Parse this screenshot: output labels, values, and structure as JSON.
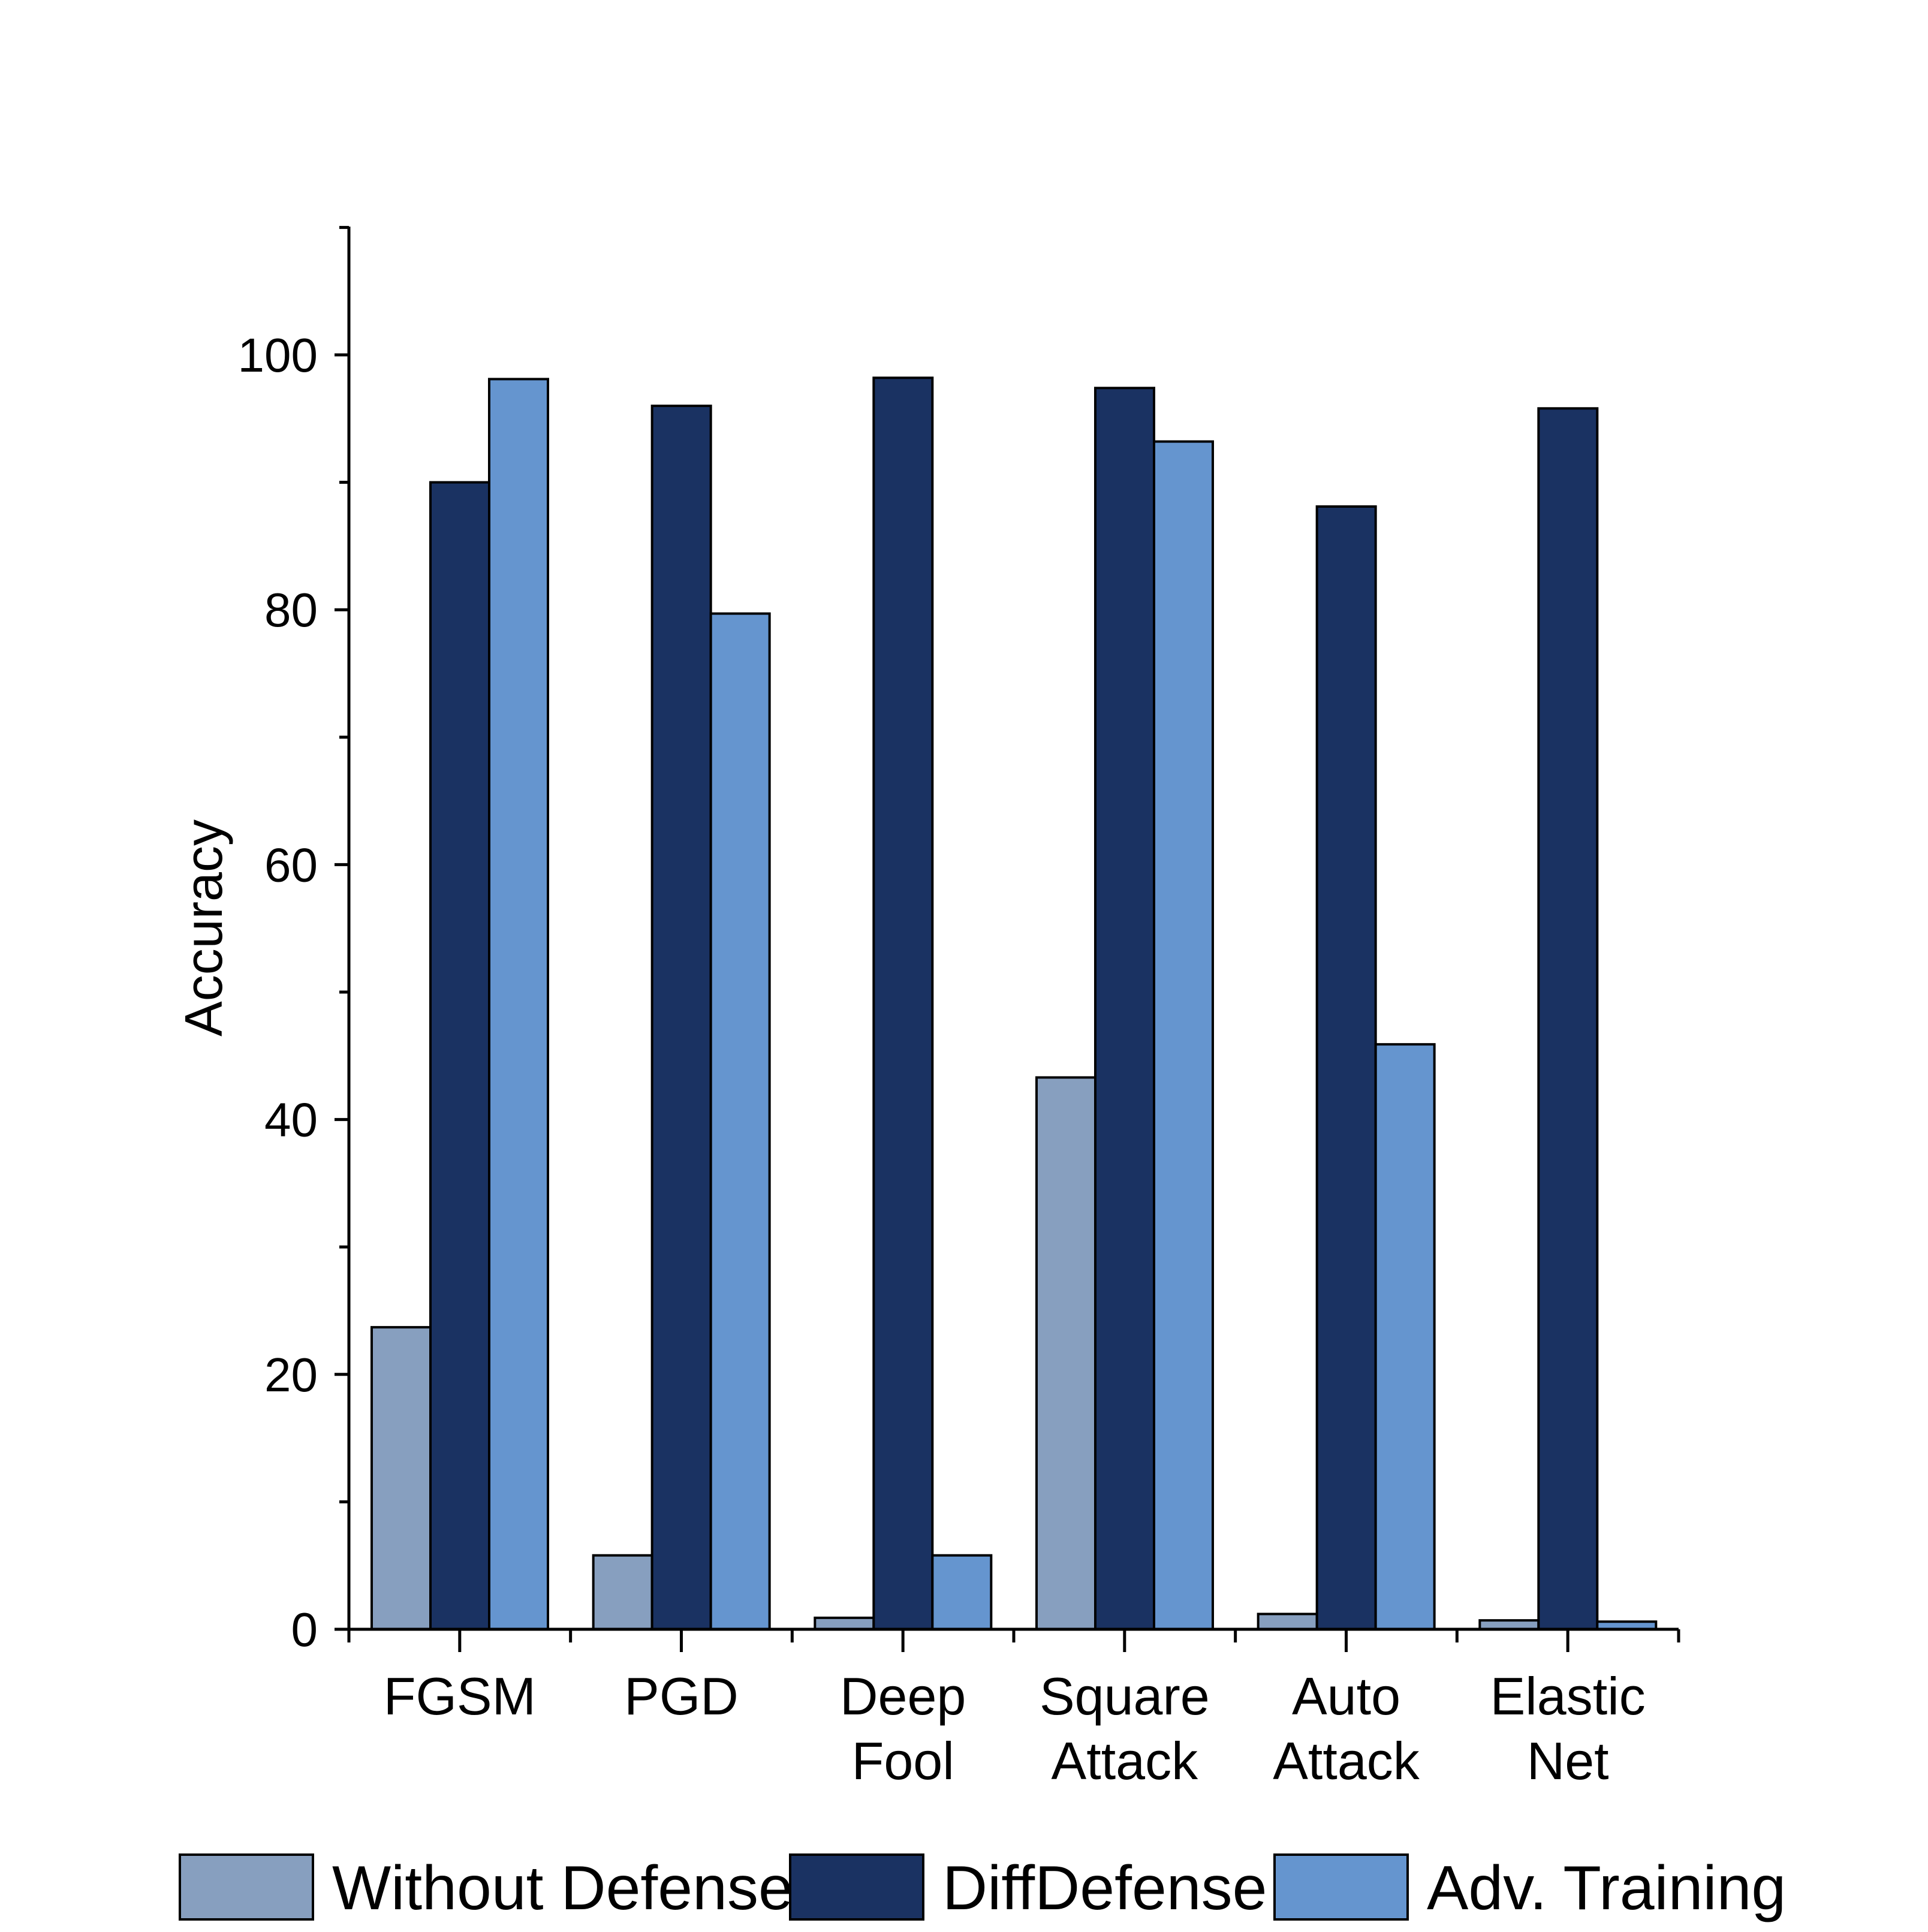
{
  "chart_data": {
    "type": "bar",
    "title": "",
    "xlabel": "",
    "ylabel": "Accuracy",
    "ylim": [
      0,
      110
    ],
    "yticks": [
      0,
      20,
      40,
      60,
      80,
      100
    ],
    "grid": false,
    "legend_position": "bottom",
    "categories": [
      [
        "FGSM"
      ],
      [
        "PGD"
      ],
      [
        "Deep",
        "Fool"
      ],
      [
        "Square",
        "Attack"
      ],
      [
        "Auto",
        "Attack"
      ],
      [
        "Elastic",
        "Net"
      ]
    ],
    "series": [
      {
        "name": "Without Defense",
        "color": "#879fbf",
        "values": [
          23.7,
          5.8,
          0.9,
          43.3,
          1.2,
          0.7
        ]
      },
      {
        "name": "DiffDefense",
        "color": "#1a3262",
        "values": [
          90.0,
          96.0,
          98.2,
          97.4,
          88.1,
          95.8
        ]
      },
      {
        "name": "Adv. Training",
        "color": "#6595cf",
        "values": [
          98.1,
          79.7,
          5.8,
          93.2,
          45.9,
          0.6
        ]
      }
    ]
  }
}
